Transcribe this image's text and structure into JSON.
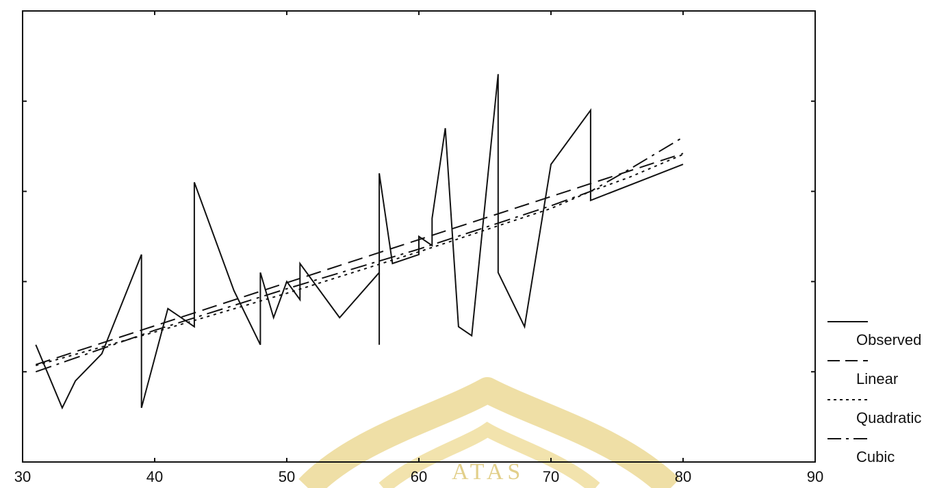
{
  "chart_data": {
    "type": "line",
    "title": "",
    "xlabel": "",
    "ylabel": "",
    "xlim": [
      30,
      90
    ],
    "ylim": [
      0,
      5
    ],
    "x_ticks": [
      30,
      40,
      50,
      60,
      70,
      80,
      90
    ],
    "x_tick_labels": [
      "30",
      "40",
      "50",
      "60",
      "70",
      "80",
      "90"
    ],
    "y_ticks": [
      1,
      2,
      3,
      4,
      5
    ],
    "y_tick_labels_visible": false,
    "grid": false,
    "legend_position": "right-bottom",
    "series": [
      {
        "name": "Observed",
        "style": "solid",
        "points": [
          [
            31,
            1.3
          ],
          [
            33,
            0.6
          ],
          [
            34,
            0.9
          ],
          [
            36,
            1.2
          ],
          [
            39,
            2.3
          ],
          [
            39,
            0.6
          ],
          [
            41,
            1.7
          ],
          [
            42,
            1.6
          ],
          [
            43,
            1.5
          ],
          [
            43,
            3.1
          ],
          [
            46,
            1.9
          ],
          [
            48,
            1.3
          ],
          [
            48,
            2.1
          ],
          [
            49,
            1.6
          ],
          [
            50,
            2.0
          ],
          [
            51,
            1.8
          ],
          [
            51,
            2.2
          ],
          [
            54,
            1.6
          ],
          [
            57,
            2.1
          ],
          [
            57,
            1.3
          ],
          [
            57,
            3.2
          ],
          [
            58,
            2.2
          ],
          [
            60,
            2.3
          ],
          [
            60,
            2.5
          ],
          [
            61,
            2.4
          ],
          [
            61,
            2.7
          ],
          [
            62,
            3.7
          ],
          [
            63,
            1.5
          ],
          [
            64,
            1.4
          ],
          [
            66,
            4.3
          ],
          [
            66,
            2.1
          ],
          [
            68,
            1.5
          ],
          [
            70,
            3.3
          ],
          [
            73,
            3.9
          ],
          [
            73,
            2.9
          ],
          [
            80,
            3.3
          ]
        ]
      },
      {
        "name": "Linear",
        "style": "dashed",
        "points": [
          [
            31,
            1.08
          ],
          [
            80,
            3.42
          ]
        ]
      },
      {
        "name": "Quadratic",
        "style": "dotted",
        "points": [
          [
            31,
            1.07
          ],
          [
            40,
            1.44
          ],
          [
            50,
            1.87
          ],
          [
            60,
            2.33
          ],
          [
            70,
            2.81
          ],
          [
            73,
            3.0
          ],
          [
            76,
            3.16
          ],
          [
            80,
            3.41
          ]
        ]
      },
      {
        "name": "Cubic",
        "style": "dashdot",
        "points": [
          [
            31,
            1.0
          ],
          [
            40,
            1.46
          ],
          [
            50,
            1.92
          ],
          [
            60,
            2.36
          ],
          [
            70,
            2.84
          ],
          [
            73,
            3.0
          ],
          [
            76,
            3.25
          ],
          [
            80,
            3.6
          ]
        ]
      }
    ]
  },
  "watermark": {
    "text": "ATAS",
    "color": "#e9d58f"
  }
}
